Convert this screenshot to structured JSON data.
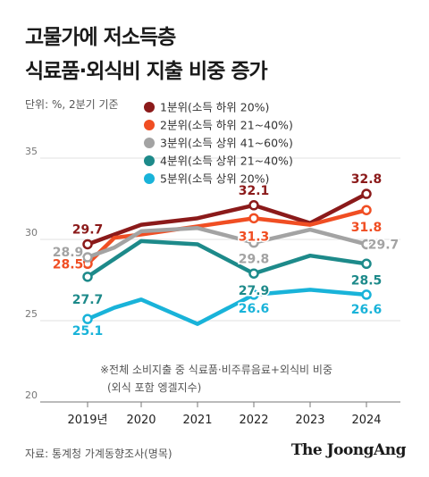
{
  "header": {
    "title_line1": "고물가에 저소득층",
    "title_line2": "식료품·외식비 지출 비중 증가",
    "unit": "단위: %, 2분기 기준"
  },
  "footnote": {
    "line1": "※전체 소비지출 중 식료품·비주류음료+외식비 비중",
    "line2": "(외식 포함 엥겔지수)"
  },
  "footer": {
    "source": "자료: 통계청 가계동향조사(명목)",
    "brand": "The JoongAng"
  },
  "chart_data": {
    "type": "line",
    "title": "고물가에 저소득층 식료품·외식비 지출 비중 증가",
    "ylabel": "",
    "xlabel": "",
    "x": [
      "2019년",
      "2019.5",
      "2020",
      "2021",
      "2022",
      "2023",
      "2024"
    ],
    "x_tick_labels": [
      "2019년",
      "2020",
      "2021",
      "2022",
      "2023",
      "2024"
    ],
    "y_ticks": [
      "35",
      "30",
      "25",
      "20"
    ],
    "ylim": [
      20,
      35
    ],
    "grid": true,
    "legend_position": "top-right",
    "series": [
      {
        "name": "1분위(소득 하위 20%)",
        "color": "#8b1a1a",
        "values": [
          29.7,
          30.3,
          30.9,
          31.3,
          32.1,
          31.0,
          32.8
        ],
        "labeled": [
          0,
          4,
          6
        ],
        "labels": [
          "29.7",
          "32.1",
          "32.8"
        ]
      },
      {
        "name": "2분위(소득 하위 21~40%)",
        "color": "#f04e23",
        "values": [
          28.5,
          30.1,
          30.3,
          30.8,
          31.3,
          30.9,
          31.8
        ],
        "labeled": [
          0,
          4,
          6
        ],
        "labels": [
          "28.5",
          "31.3",
          "31.8"
        ]
      },
      {
        "name": "3분위(소득 상위 41~60%)",
        "color": "#a3a3a3",
        "values": [
          28.9,
          29.5,
          30.5,
          30.7,
          29.8,
          30.6,
          29.7
        ],
        "labeled": [
          0,
          4,
          6
        ],
        "labels": [
          "28.9",
          "29.8",
          "29.7"
        ]
      },
      {
        "name": "4분위(소득 상위 21~40%)",
        "color": "#1d8a8a",
        "values": [
          27.7,
          28.8,
          29.9,
          29.7,
          27.9,
          29.0,
          28.5
        ],
        "labeled": [
          0,
          4,
          6
        ],
        "labels": [
          "27.7",
          "27.9",
          "28.5"
        ]
      },
      {
        "name": "5분위(소득 상위 20%)",
        "color": "#19b3d9",
        "values": [
          25.1,
          25.8,
          26.3,
          24.8,
          26.6,
          26.9,
          26.6
        ],
        "labeled": [
          0,
          4,
          6
        ],
        "labels": [
          "25.1",
          "26.6",
          "26.6"
        ]
      }
    ]
  }
}
